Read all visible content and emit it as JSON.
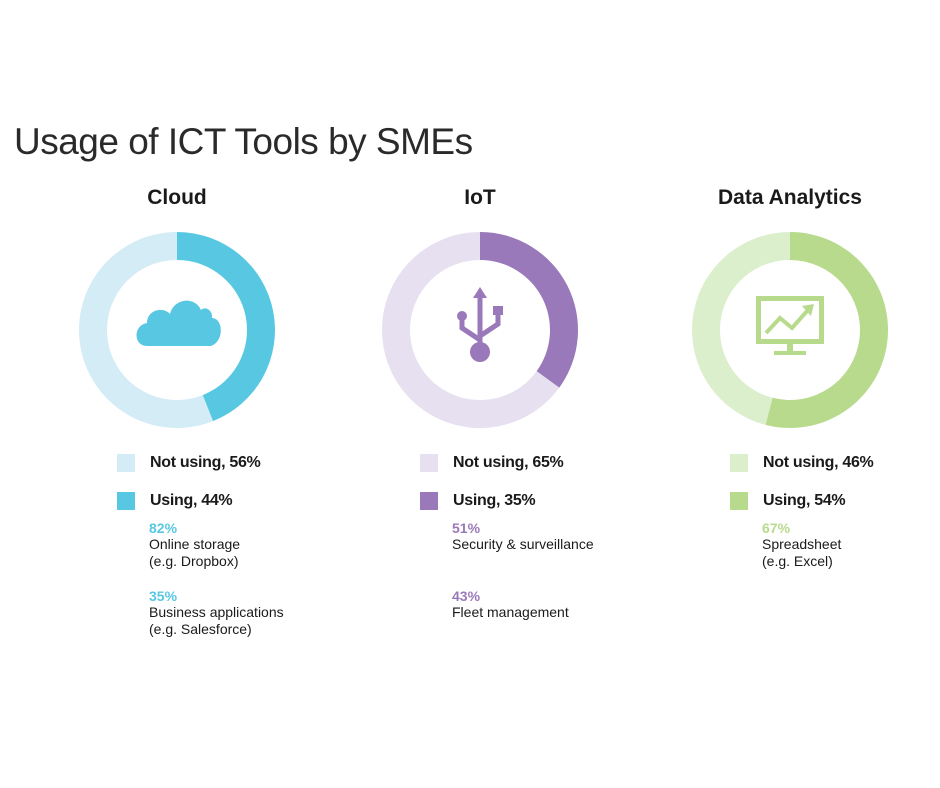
{
  "title": "Usage of ICT Tools by SMEs",
  "chart_data": [
    {
      "type": "pie",
      "title": "Cloud",
      "icon": "cloud-icon",
      "colors": {
        "not_using": "#d3ecf5",
        "using": "#58c8e2"
      },
      "slices": [
        {
          "label": "Not using, 56%",
          "value": 56
        },
        {
          "label": "Using, 44%",
          "value": 44
        }
      ],
      "using_breakdown": [
        {
          "percent": "82%",
          "line1": "Online storage",
          "line2": "(e.g. Dropbox)"
        },
        {
          "percent": "35%",
          "line1": "Business applications",
          "line2": "(e.g. Salesforce)"
        }
      ]
    },
    {
      "type": "pie",
      "title": "IoT",
      "icon": "usb-icon",
      "colors": {
        "not_using": "#e6e0f0",
        "using": "#9a79ba"
      },
      "slices": [
        {
          "label": "Not using, 65%",
          "value": 65
        },
        {
          "label": "Using, 35%",
          "value": 35
        }
      ],
      "using_breakdown": [
        {
          "percent": "51%",
          "line1": "Security & surveillance",
          "line2": ""
        },
        {
          "percent": "43%",
          "line1": "Fleet management",
          "line2": ""
        }
      ]
    },
    {
      "type": "pie",
      "title": "Data Analytics",
      "icon": "trend-monitor-icon",
      "colors": {
        "not_using": "#dcefcd",
        "using": "#b8da8c"
      },
      "slices": [
        {
          "label": "Not using, 46%",
          "value": 46
        },
        {
          "label": "Using, 54%",
          "value": 54
        }
      ],
      "using_breakdown": [
        {
          "percent": "67%",
          "line1": "Spreadsheet",
          "line2": "(e.g. Excel)"
        }
      ]
    }
  ]
}
